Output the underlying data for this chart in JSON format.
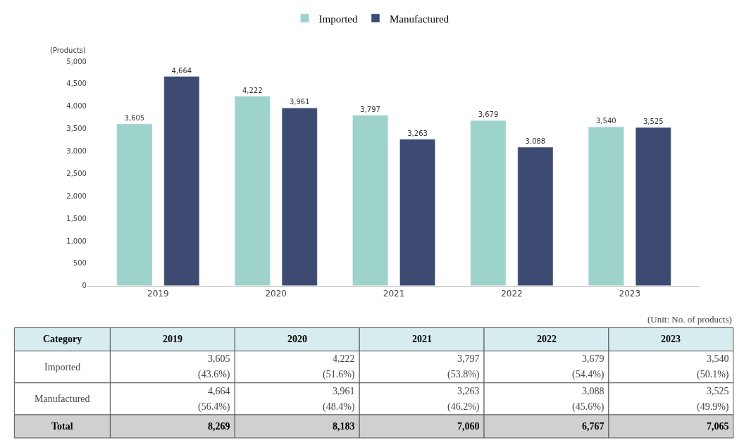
{
  "chart_data": [
    {
      "type": "bar",
      "ylabel": "(Products)",
      "categories": [
        "2019",
        "2020",
        "2021",
        "2022",
        "2023"
      ],
      "series": [
        {
          "name": "Imported",
          "color": "#9dd3cb",
          "values": [
            3605,
            4222,
            3797,
            3679,
            3540
          ],
          "value_labels": [
            "3,605",
            "4,222",
            "3,797",
            "3,679",
            "3,540"
          ]
        },
        {
          "name": "Manufactured",
          "color": "#3d4b73",
          "values": [
            4664,
            3961,
            3263,
            3088,
            3525
          ],
          "value_labels": [
            "4,664",
            "3,961",
            "3,263",
            "3,088",
            "3,525"
          ]
        }
      ],
      "ylim": [
        0,
        5000
      ],
      "yticks": [
        0,
        500,
        {
          "value": 1000,
          "label": "1,000"
        },
        {
          "value": 1500,
          "label": "1,500"
        },
        {
          "value": 2000,
          "label": "2,000"
        },
        {
          "value": 2500,
          "label": "2,500"
        },
        {
          "value": 3000,
          "label": "3,000"
        },
        {
          "value": 3500,
          "label": "3,500"
        },
        {
          "value": 4000,
          "label": "4,000"
        },
        {
          "value": 4500,
          "label": "4,500"
        },
        {
          "value": 5000,
          "label": "5,000"
        }
      ],
      "legend": "top"
    },
    {
      "type": "heatmap",
      "ylabel": "Category",
      "categories": [
        "2019",
        "2020",
        "2021",
        "2022",
        "2023"
      ],
      "y_categories": [
        "Imported",
        "Manufactured",
        "Total"
      ],
      "cells": [
        [
          3605,
          4222,
          3797,
          3679,
          3540
        ],
        [
          4664,
          3961,
          3263,
          3088,
          3525
        ],
        [
          8269,
          8183,
          7060,
          6767,
          7065
        ]
      ],
      "cell_labels": [
        [
          "3,605",
          "4,222",
          "3,797",
          "3,679",
          "3,540"
        ],
        [
          "4,664",
          "3,961",
          "3,263",
          "3,088",
          "3,525"
        ],
        [
          "8,269",
          "8,183",
          "7,060",
          "6,767",
          "7,065"
        ]
      ],
      "annotations": [
        "(Unit: No. of products)",
        "(43.6%)",
        "(51.6%)",
        "(53.8%)",
        "(54.4%)",
        "(50.1%)",
        "(56.4%)",
        "(48.4%)",
        "(46.2%)",
        "(45.6%)",
        "(49.9%)"
      ]
    }
  ]
}
